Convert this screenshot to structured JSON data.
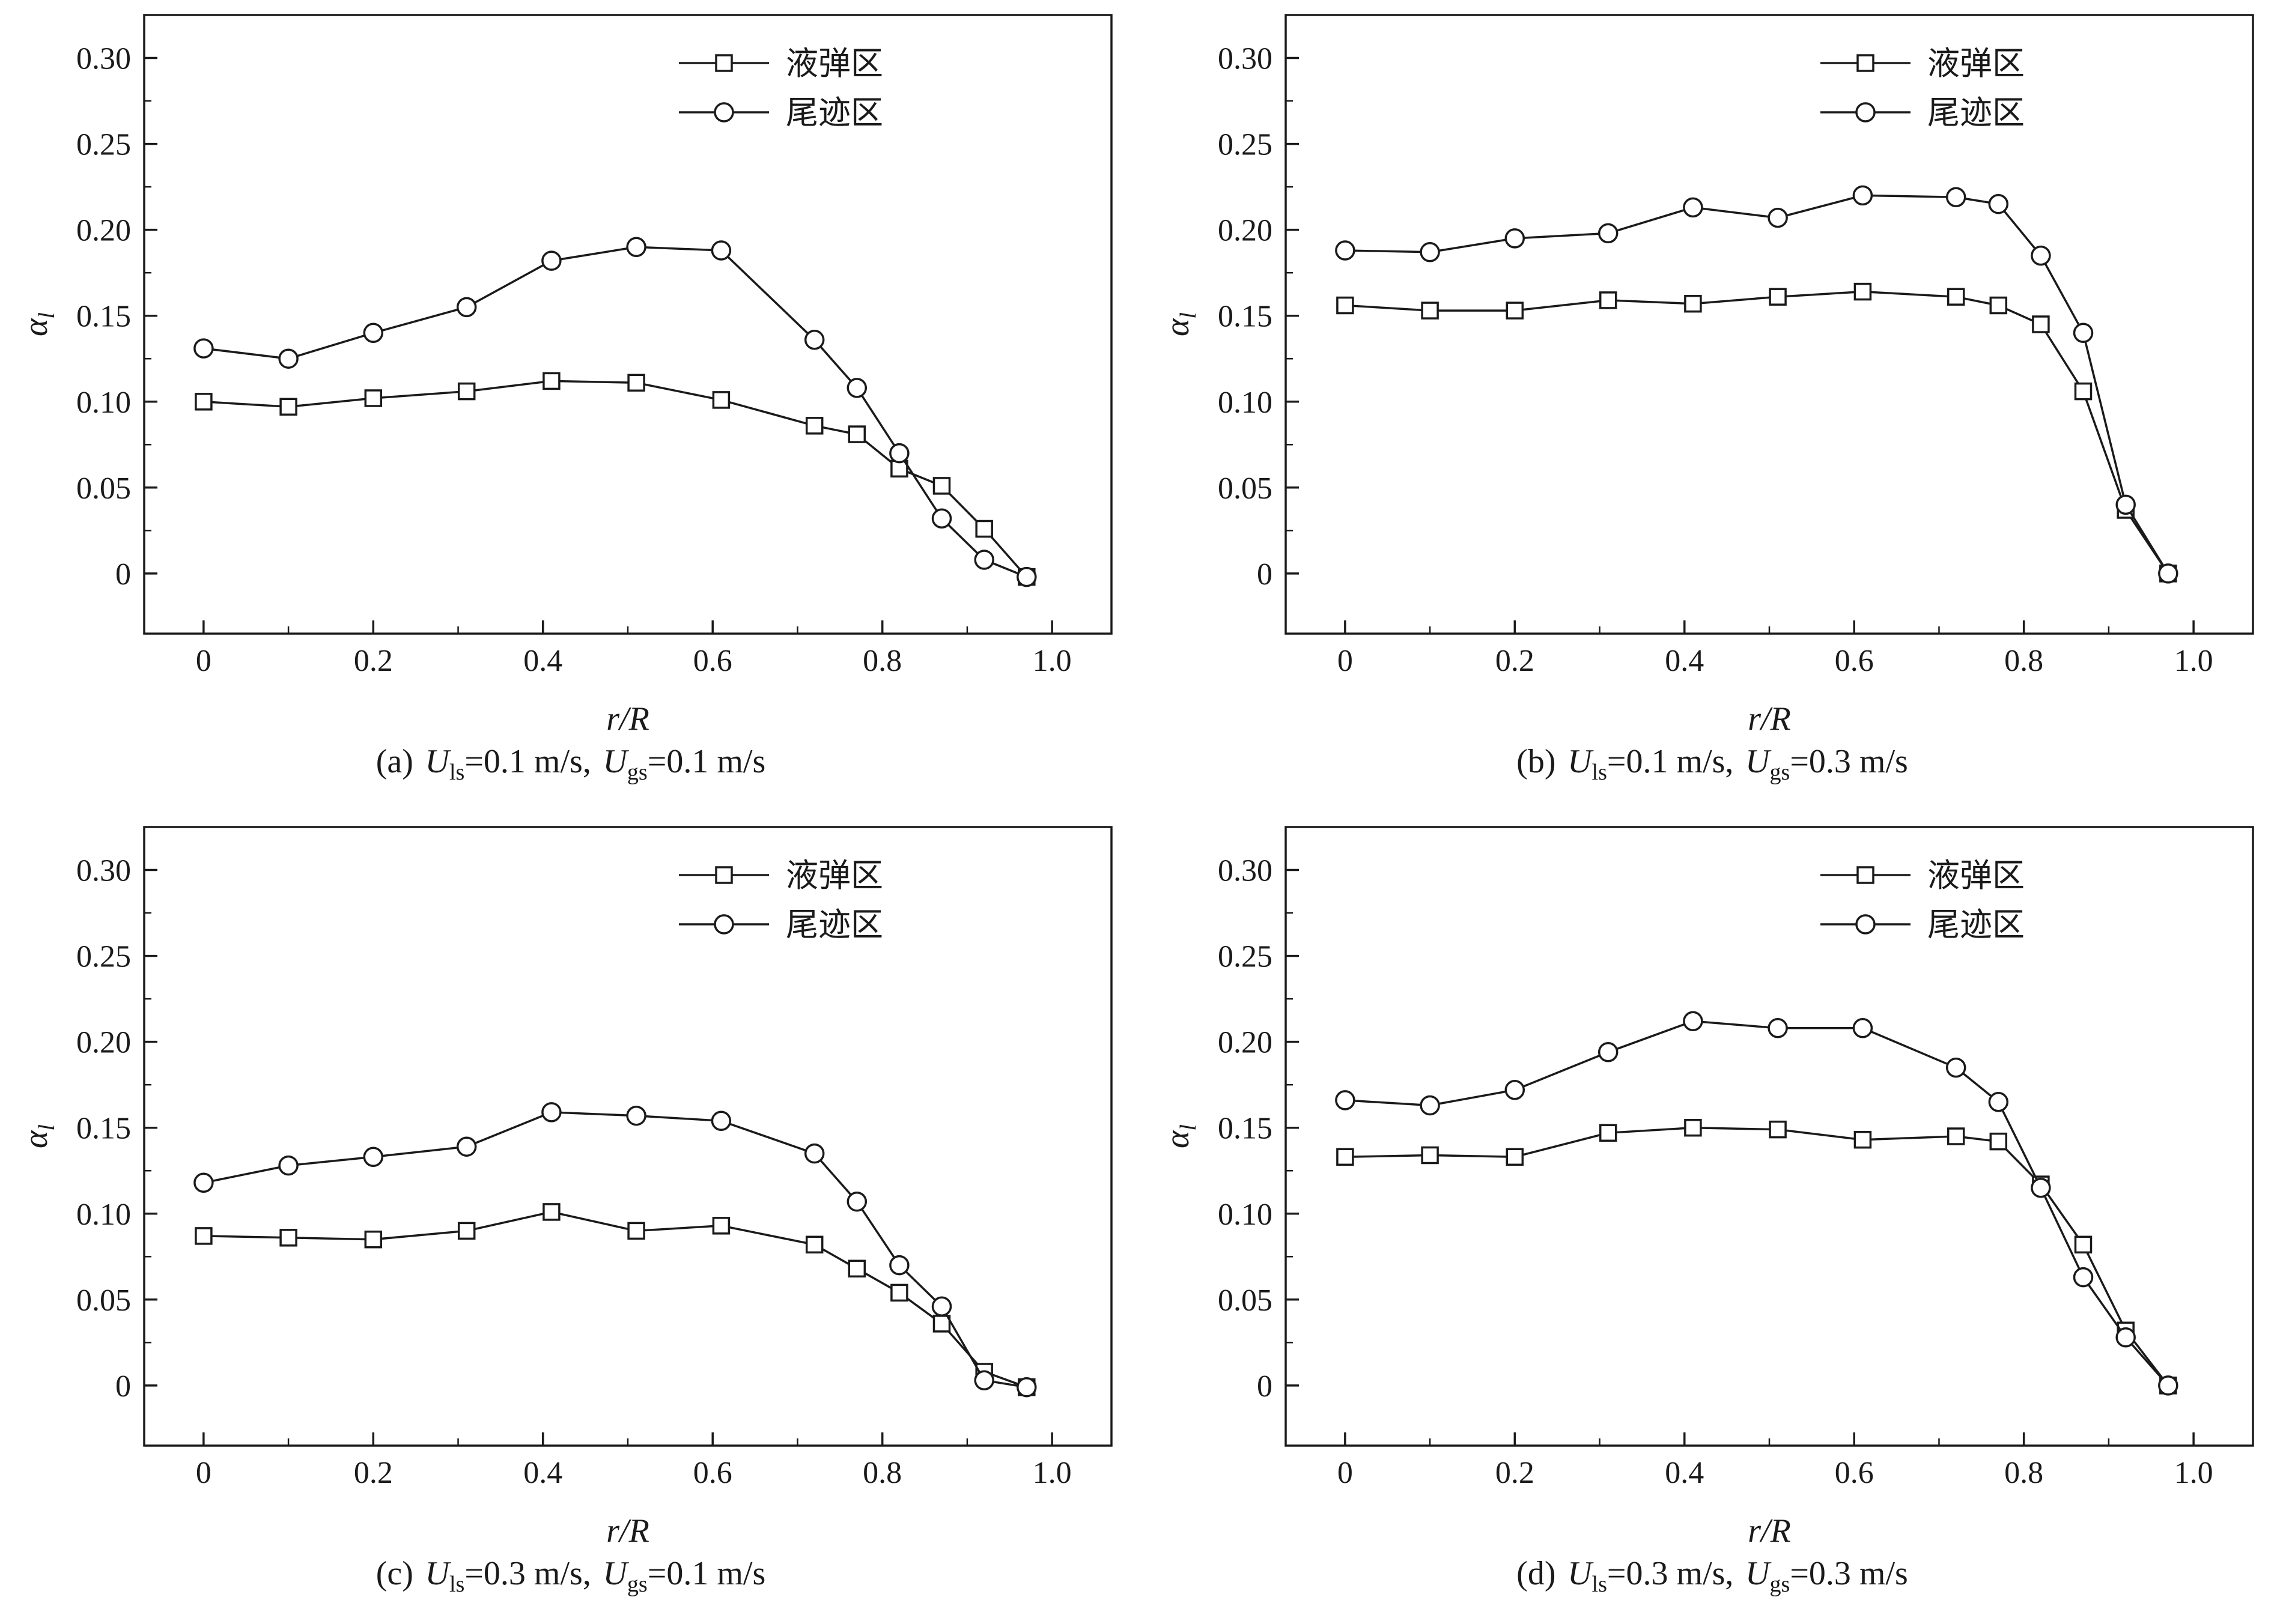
{
  "page": {
    "background": "#ffffff",
    "line_color": "#1a1a1a"
  },
  "chart_data": [
    {
      "type": "line",
      "panel": "a",
      "xlabel": "r/R",
      "ylabel": {
        "base": "α",
        "sub": "l"
      },
      "xlim": [
        -0.07,
        1.07
      ],
      "ylim": [
        -0.035,
        0.325
      ],
      "xticks": [
        0,
        0.2,
        0.4,
        0.6,
        0.8,
        1.0
      ],
      "xtick_labels": [
        "0",
        "0.2",
        "0.4",
        "0.6",
        "0.8",
        "1.0"
      ],
      "yticks": [
        0,
        0.05,
        0.1,
        0.15,
        0.2,
        0.25,
        0.3
      ],
      "ytick_labels": [
        "0",
        "0.05",
        "0.10",
        "0.15",
        "0.20",
        "0.25",
        "0.30"
      ],
      "grid": false,
      "legend_position": "top-right-inside",
      "x": [
        0,
        0.1,
        0.2,
        0.31,
        0.41,
        0.51,
        0.61,
        0.72,
        0.77,
        0.82,
        0.87,
        0.92,
        0.97
      ],
      "series": [
        {
          "name": "液弹区",
          "marker": "square",
          "values": [
            0.1,
            0.097,
            0.102,
            0.106,
            0.112,
            0.111,
            0.101,
            0.086,
            0.081,
            0.061,
            0.051,
            0.026,
            -0.002
          ]
        },
        {
          "name": "尾迹区",
          "marker": "circle",
          "values": [
            0.131,
            0.125,
            0.14,
            0.155,
            0.182,
            0.19,
            0.188,
            0.136,
            0.108,
            0.07,
            0.032,
            0.008,
            -0.002
          ]
        }
      ],
      "caption": {
        "prefix": "(a)",
        "var1": "U",
        "sub1": "ls",
        "val1": "=0.1 m/s,",
        "var2": "U",
        "sub2": "gs",
        "val2": "=0.1 m/s"
      }
    },
    {
      "type": "line",
      "panel": "b",
      "xlabel": "r/R",
      "ylabel": {
        "base": "α",
        "sub": "l"
      },
      "xlim": [
        -0.07,
        1.07
      ],
      "ylim": [
        -0.035,
        0.325
      ],
      "xticks": [
        0,
        0.2,
        0.4,
        0.6,
        0.8,
        1.0
      ],
      "xtick_labels": [
        "0",
        "0.2",
        "0.4",
        "0.6",
        "0.8",
        "1.0"
      ],
      "yticks": [
        0,
        0.05,
        0.1,
        0.15,
        0.2,
        0.25,
        0.3
      ],
      "ytick_labels": [
        "0",
        "0.05",
        "0.10",
        "0.15",
        "0.20",
        "0.25",
        "0.30"
      ],
      "grid": false,
      "legend_position": "top-right-inside",
      "x": [
        0,
        0.1,
        0.2,
        0.31,
        0.41,
        0.51,
        0.61,
        0.72,
        0.77,
        0.82,
        0.87,
        0.92,
        0.97
      ],
      "series": [
        {
          "name": "液弹区",
          "marker": "square",
          "values": [
            0.156,
            0.153,
            0.153,
            0.159,
            0.157,
            0.161,
            0.164,
            0.161,
            0.156,
            0.145,
            0.106,
            0.037,
            0.0
          ]
        },
        {
          "name": "尾迹区",
          "marker": "circle",
          "values": [
            0.188,
            0.187,
            0.195,
            0.198,
            0.213,
            0.207,
            0.22,
            0.219,
            0.215,
            0.185,
            0.14,
            0.04,
            0.0
          ]
        }
      ],
      "caption": {
        "prefix": "(b)",
        "var1": "U",
        "sub1": "ls",
        "val1": "=0.1 m/s,",
        "var2": "U",
        "sub2": "gs",
        "val2": "=0.3 m/s"
      }
    },
    {
      "type": "line",
      "panel": "c",
      "xlabel": "r/R",
      "ylabel": {
        "base": "α",
        "sub": "l"
      },
      "xlim": [
        -0.07,
        1.07
      ],
      "ylim": [
        -0.035,
        0.325
      ],
      "xticks": [
        0,
        0.2,
        0.4,
        0.6,
        0.8,
        1.0
      ],
      "xtick_labels": [
        "0",
        "0.2",
        "0.4",
        "0.6",
        "0.8",
        "1.0"
      ],
      "yticks": [
        0,
        0.05,
        0.1,
        0.15,
        0.2,
        0.25,
        0.3
      ],
      "ytick_labels": [
        "0",
        "0.05",
        "0.10",
        "0.15",
        "0.20",
        "0.25",
        "0.30"
      ],
      "grid": false,
      "legend_position": "top-right-inside",
      "x": [
        0,
        0.1,
        0.2,
        0.31,
        0.41,
        0.51,
        0.61,
        0.72,
        0.77,
        0.82,
        0.87,
        0.92,
        0.97
      ],
      "series": [
        {
          "name": "液弹区",
          "marker": "square",
          "values": [
            0.087,
            0.086,
            0.085,
            0.09,
            0.101,
            0.09,
            0.093,
            0.082,
            0.068,
            0.054,
            0.036,
            0.008,
            -0.001
          ]
        },
        {
          "name": "尾迹区",
          "marker": "circle",
          "values": [
            0.118,
            0.128,
            0.133,
            0.139,
            0.159,
            0.157,
            0.154,
            0.135,
            0.107,
            0.07,
            0.046,
            0.003,
            -0.001
          ]
        }
      ],
      "caption": {
        "prefix": "(c)",
        "var1": "U",
        "sub1": "ls",
        "val1": "=0.3 m/s,",
        "var2": "U",
        "sub2": "gs",
        "val2": "=0.1 m/s"
      }
    },
    {
      "type": "line",
      "panel": "d",
      "xlabel": "r/R",
      "ylabel": {
        "base": "α",
        "sub": "l"
      },
      "xlim": [
        -0.07,
        1.07
      ],
      "ylim": [
        -0.035,
        0.325
      ],
      "xticks": [
        0,
        0.2,
        0.4,
        0.6,
        0.8,
        1.0
      ],
      "xtick_labels": [
        "0",
        "0.2",
        "0.4",
        "0.6",
        "0.8",
        "1.0"
      ],
      "yticks": [
        0,
        0.05,
        0.1,
        0.15,
        0.2,
        0.25,
        0.3
      ],
      "ytick_labels": [
        "0",
        "0.05",
        "0.10",
        "0.15",
        "0.20",
        "0.25",
        "0.30"
      ],
      "grid": false,
      "legend_position": "top-right-inside",
      "x": [
        0,
        0.1,
        0.2,
        0.31,
        0.41,
        0.51,
        0.61,
        0.72,
        0.77,
        0.82,
        0.87,
        0.92,
        0.97
      ],
      "series": [
        {
          "name": "液弹区",
          "marker": "square",
          "values": [
            0.133,
            0.134,
            0.133,
            0.147,
            0.15,
            0.149,
            0.143,
            0.145,
            0.142,
            0.117,
            0.082,
            0.032,
            0.0
          ]
        },
        {
          "name": "尾迹区",
          "marker": "circle",
          "values": [
            0.166,
            0.163,
            0.172,
            0.194,
            0.212,
            0.208,
            0.208,
            0.185,
            0.165,
            0.115,
            0.063,
            0.028,
            0.0
          ]
        }
      ],
      "caption": {
        "prefix": "(d)",
        "var1": "U",
        "sub1": "ls",
        "val1": "=0.3 m/s,",
        "var2": "U",
        "sub2": "gs",
        "val2": "=0.3 m/s"
      }
    }
  ]
}
